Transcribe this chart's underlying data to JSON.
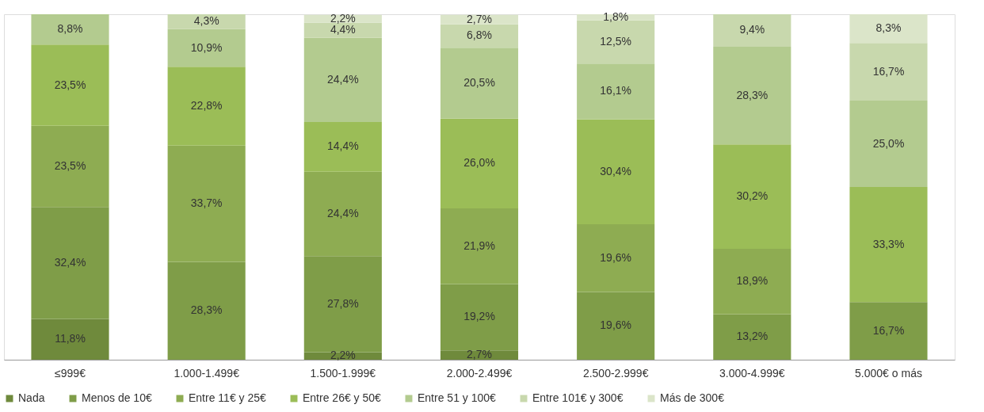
{
  "chart_data": {
    "type": "bar",
    "stacked": true,
    "legend": "bottom",
    "tick_labels": "x",
    "grid": false,
    "ylim": [
      0,
      100
    ],
    "categories": [
      "≤999€",
      "1.000-1.499€",
      "1.500-1.999€",
      "2.000-2.499€",
      "2.500-2.999€",
      "3.000-4.999€",
      "5.000€ o más"
    ],
    "series": [
      {
        "name": "Nada",
        "color": "#6f8a3c",
        "values": [
          11.8,
          null,
          2.2,
          2.7,
          null,
          null,
          null
        ],
        "value_labels": [
          "11,8%",
          null,
          "2,2%",
          "2,7%",
          null,
          null,
          null
        ]
      },
      {
        "name": "Menos de 10€",
        "color": "#7f9d48",
        "values": [
          32.4,
          28.3,
          27.8,
          19.2,
          19.6,
          13.2,
          16.7
        ],
        "value_labels": [
          "32,4%",
          "28,3%",
          "27,8%",
          "19,2%",
          "19,6%",
          "13,2%",
          "16,7%"
        ]
      },
      {
        "name": "Entre 11€ y 25€",
        "color": "#8eac52",
        "values": [
          23.5,
          33.7,
          24.4,
          21.9,
          19.6,
          18.9,
          null
        ],
        "value_labels": [
          "23,5%",
          "33,7%",
          "24,4%",
          "21,9%",
          "19,6%",
          "18,9%",
          null
        ]
      },
      {
        "name": "Entre 26€ y 50€",
        "color": "#9bbd57",
        "values": [
          23.5,
          22.8,
          14.4,
          26.0,
          30.4,
          30.2,
          33.3
        ],
        "value_labels": [
          "23,5%",
          "22,8%",
          "14,4%",
          "26,0%",
          "30,4%",
          "30,2%",
          "33,3%"
        ]
      },
      {
        "name": "Entre 51 y 100€",
        "color": "#b3cb8f",
        "values": [
          8.8,
          10.9,
          24.4,
          20.5,
          16.1,
          28.3,
          25.0
        ],
        "value_labels": [
          "8,8%",
          "10,9%",
          "24,4%",
          "20,5%",
          "16,1%",
          "28,3%",
          "25,0%"
        ]
      },
      {
        "name": "Entre 101€ y 300€",
        "color": "#c8d8ad",
        "values": [
          null,
          4.3,
          4.4,
          6.8,
          12.5,
          9.4,
          16.7
        ],
        "value_labels": [
          null,
          "4,3%",
          "4,4%",
          "6,8%",
          "12,5%",
          "9,4%",
          "16,7%"
        ]
      },
      {
        "name": "Más de 300€",
        "color": "#dbe5c9",
        "values": [
          null,
          null,
          2.2,
          2.7,
          1.8,
          null,
          8.3
        ],
        "value_labels": [
          null,
          null,
          "2,2%",
          "2,7%",
          "1,8%",
          null,
          "8,3%"
        ]
      }
    ]
  }
}
